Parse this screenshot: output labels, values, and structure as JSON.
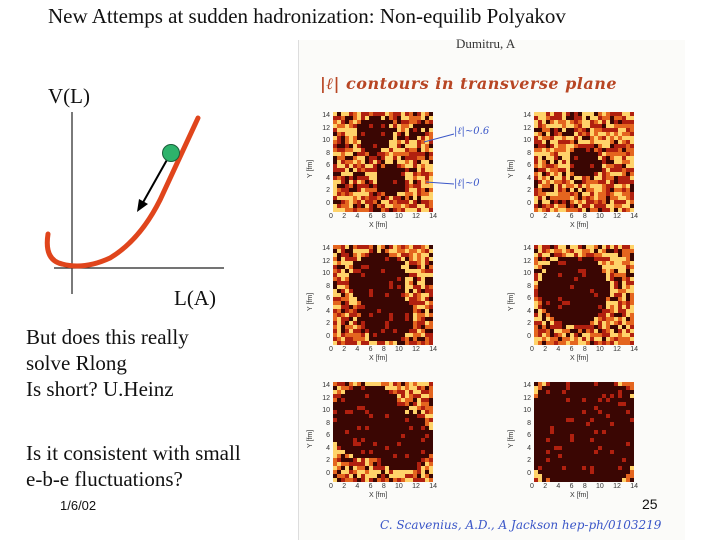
{
  "slide": {
    "title": "New Attemps at sudden hadronization: Non-equilib Polyakov",
    "y_axis_label": "V(L)",
    "x_axis_label": "L(A)",
    "question1_line1": "But does this really",
    "question1_line2": "solve Rlong",
    "question1_line3": "Is short? U.Heinz",
    "question2_line1": "Is it consistent with small",
    "question2_line2": "e-b-e fluctuations?",
    "date": "1/6/02",
    "page_number": "25"
  },
  "figure": {
    "author": "Dumitru, A",
    "handwritten_title": "|ℓ| contours in transverse plane",
    "annotation_high": "|ℓ|~0.6",
    "annotation_low": "|ℓ|~0",
    "handwritten_reference": "C. Scavenius, A.D., A Jackson hep-ph/0103219",
    "panel_x_label": "X [fm]",
    "panel_y_label": "Y [fm]",
    "tick_values": [
      "0",
      "2",
      "4",
      "6",
      "8",
      "10",
      "12",
      "14"
    ],
    "panel_count": 6
  },
  "colors": {
    "curve": "#e0451c",
    "ball": "#2db36b",
    "arrow": "#000000",
    "handwriting_red": "#b84624",
    "handwriting_blue": "#3a56c8",
    "heat_dark": "#3a0603",
    "heat_mid": "#b0200f",
    "heat_bright": "#ffd36a"
  }
}
